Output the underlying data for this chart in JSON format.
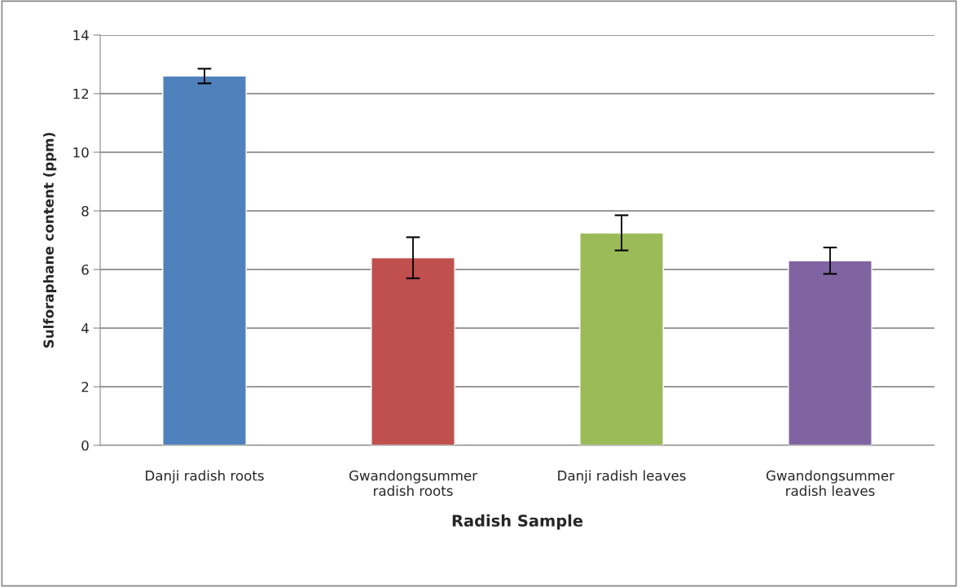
{
  "chart_data": {
    "type": "bar",
    "xlabel": "Radish Sample",
    "ylabel": "Sulforaphane content (ppm)",
    "categories": [
      "Danji radish roots",
      "Gwandongsummer\nradish roots",
      "Danji radish leaves",
      "Gwandongsummer\nradish leaves"
    ],
    "values": [
      12.6,
      6.4,
      7.25,
      6.3
    ],
    "errors": [
      0.25,
      0.7,
      0.6,
      0.45
    ],
    "colors": [
      "#4f81bd",
      "#c0504d",
      "#9bbb59",
      "#8064a2"
    ],
    "ylim": [
      0,
      14
    ],
    "yticks": [
      0,
      2,
      4,
      6,
      8,
      10,
      12,
      14
    ],
    "grid": "y"
  }
}
